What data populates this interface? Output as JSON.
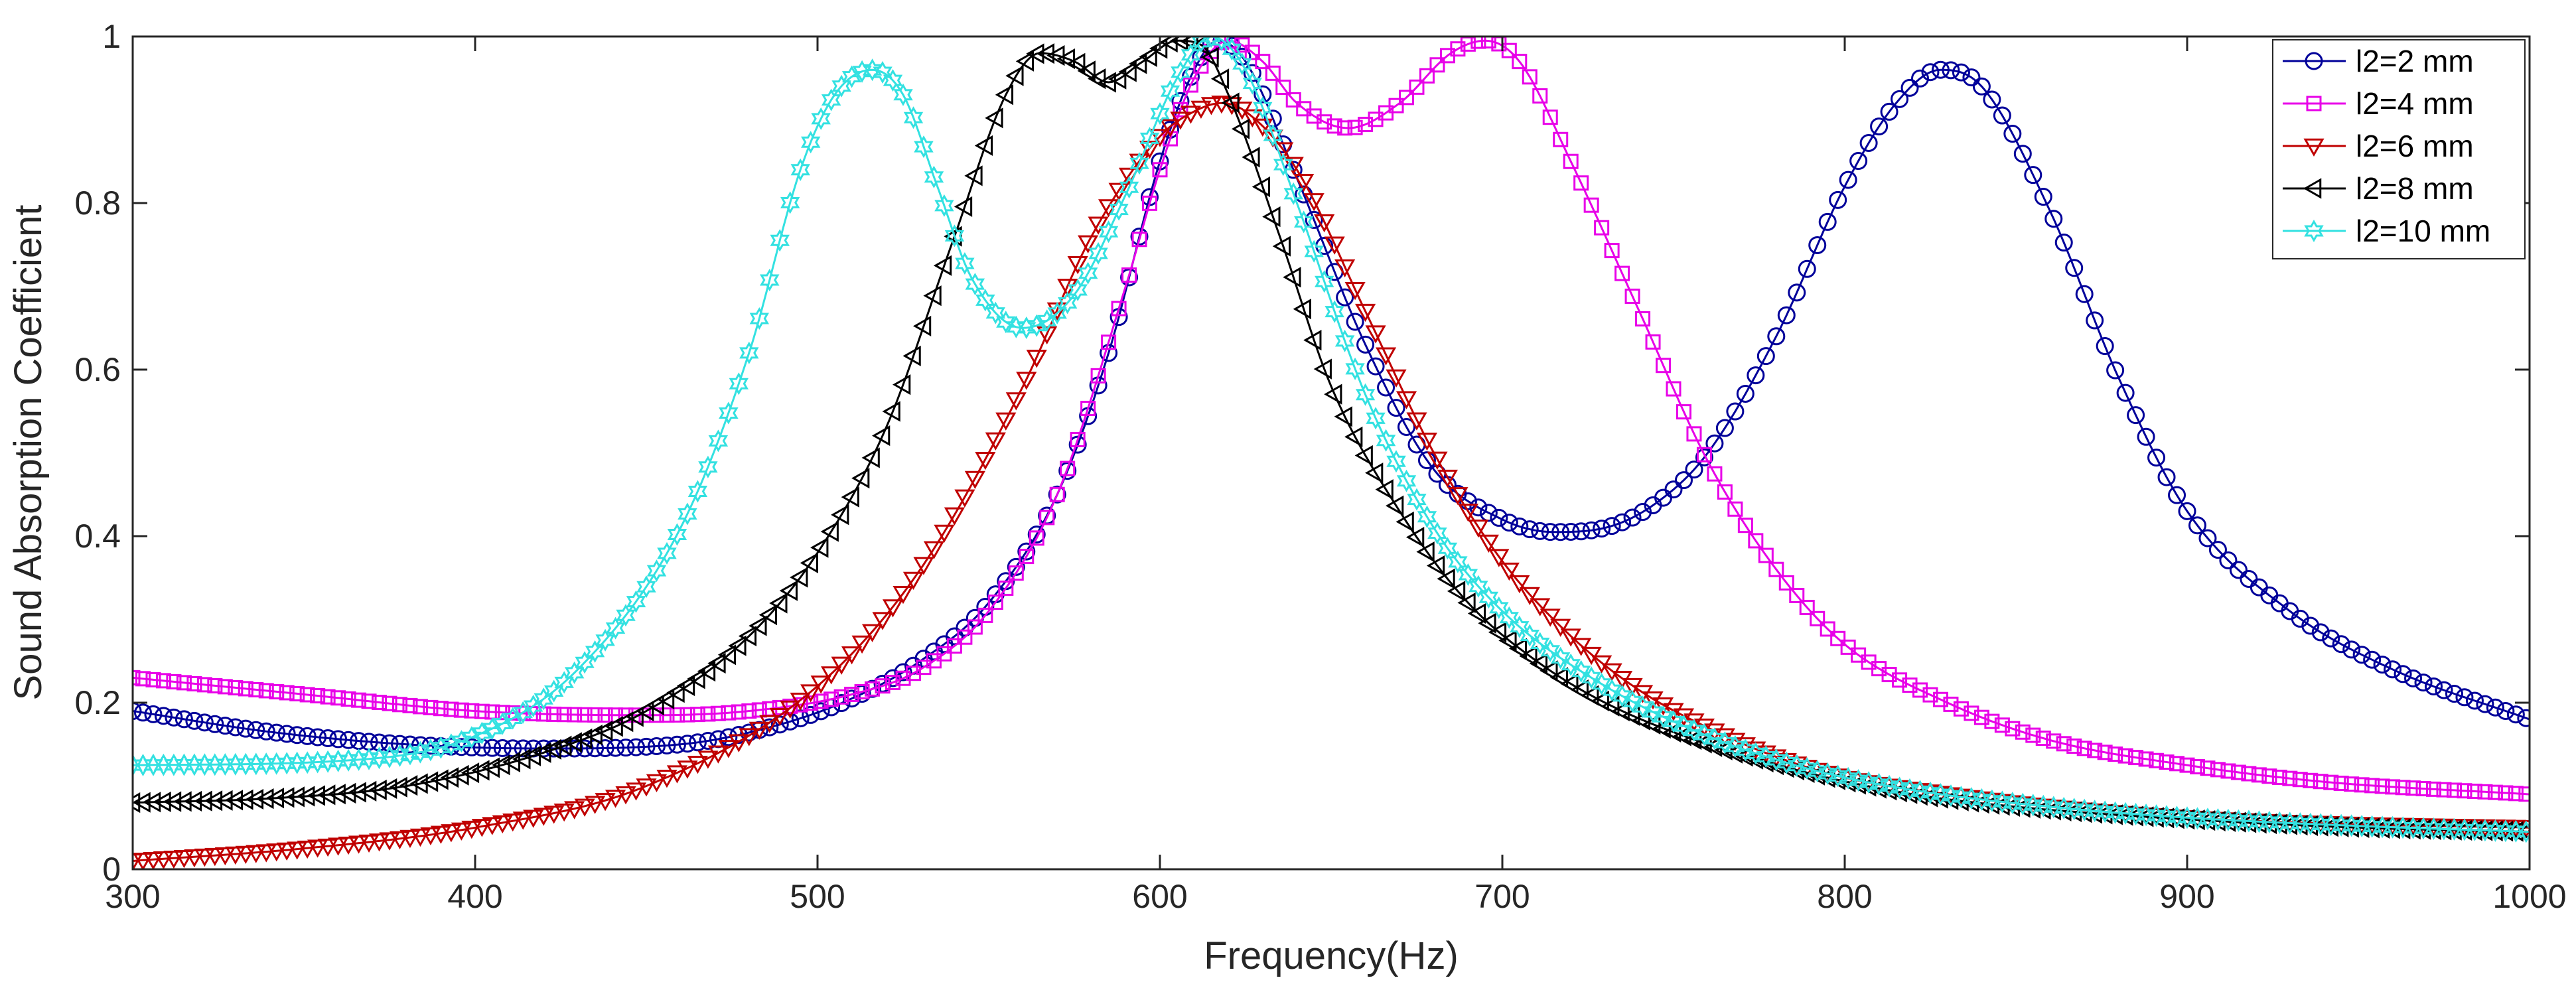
{
  "chart_data": {
    "type": "line",
    "title": "",
    "xlabel": "Frequency(Hz)",
    "ylabel": "Sound Absorption Coefficient",
    "xlim": [
      300,
      1000
    ],
    "ylim": [
      0,
      1
    ],
    "xticks": [
      "300",
      "400",
      "500",
      "600",
      "700",
      "800",
      "900",
      "1000"
    ],
    "yticks": [
      "0",
      "0.2",
      "0.4",
      "0.6",
      "0.8",
      "1"
    ],
    "grid": false,
    "legend_position": "top-right",
    "series": [
      {
        "name": "l2=2 mm",
        "color": "#00009a",
        "marker": "circle",
        "x": [
          300,
          340,
          380,
          420,
          460,
          490,
          510,
          530,
          550,
          570,
          585,
          600,
          610,
          617,
          625,
          640,
          660,
          680,
          700,
          715,
          730,
          745,
          760,
          780,
          800,
          815,
          828,
          840,
          860,
          880,
          900,
          930,
          960,
          1000
        ],
        "y": [
          0.19,
          0.165,
          0.15,
          0.145,
          0.15,
          0.175,
          0.205,
          0.25,
          0.32,
          0.45,
          0.62,
          0.85,
          0.96,
          0.995,
          0.97,
          0.83,
          0.63,
          0.48,
          0.42,
          0.405,
          0.41,
          0.44,
          0.5,
          0.64,
          0.82,
          0.92,
          0.96,
          0.94,
          0.79,
          0.59,
          0.43,
          0.31,
          0.24,
          0.18
        ]
      },
      {
        "name": "l2=4 mm",
        "color": "#e800e8",
        "marker": "square",
        "x": [
          300,
          350,
          400,
          450,
          480,
          510,
          530,
          550,
          570,
          590,
          600,
          610,
          620,
          630,
          640,
          655,
          670,
          685,
          695,
          705,
          720,
          740,
          760,
          780,
          800,
          830,
          860,
          900,
          940,
          1000
        ],
        "y": [
          0.23,
          0.21,
          0.19,
          0.185,
          0.19,
          0.21,
          0.24,
          0.31,
          0.45,
          0.7,
          0.84,
          0.95,
          0.995,
          0.97,
          0.92,
          0.89,
          0.92,
          0.98,
          0.995,
          0.97,
          0.85,
          0.67,
          0.49,
          0.36,
          0.27,
          0.2,
          0.155,
          0.125,
          0.105,
          0.09
        ]
      },
      {
        "name": "l2=6 mm",
        "color": "#c00000",
        "marker": "triangle-down",
        "x": [
          300,
          350,
          400,
          450,
          500,
          530,
          560,
          580,
          600,
          610,
          618,
          625,
          640,
          660,
          680,
          700,
          720,
          740,
          760,
          780,
          800,
          830,
          860,
          900,
          940,
          1000
        ],
        "y": [
          0.01,
          0.025,
          0.05,
          0.1,
          0.22,
          0.36,
          0.58,
          0.76,
          0.88,
          0.91,
          0.92,
          0.91,
          0.84,
          0.67,
          0.5,
          0.37,
          0.28,
          0.215,
          0.17,
          0.135,
          0.11,
          0.09,
          0.075,
          0.062,
          0.055,
          0.05
        ]
      },
      {
        "name": "l2=8 mm",
        "color": "#000000",
        "marker": "triangle-left",
        "x": [
          300,
          340,
          380,
          420,
          450,
          480,
          500,
          520,
          540,
          555,
          565,
          575,
          585,
          595,
          605,
          612,
          620,
          635,
          650,
          670,
          690,
          710,
          730,
          760,
          790,
          820,
          850,
          900,
          950,
          1000
        ],
        "y": [
          0.08,
          0.085,
          0.1,
          0.14,
          0.19,
          0.28,
          0.38,
          0.53,
          0.76,
          0.93,
          0.98,
          0.97,
          0.945,
          0.97,
          0.995,
          0.99,
          0.93,
          0.76,
          0.58,
          0.43,
          0.32,
          0.25,
          0.2,
          0.15,
          0.115,
          0.09,
          0.075,
          0.06,
          0.05,
          0.045
        ]
      },
      {
        "name": "l2=10 mm",
        "color": "#33e1e1",
        "marker": "hexagram",
        "x": [
          300,
          360,
          400,
          430,
          460,
          480,
          495,
          505,
          516,
          525,
          535,
          545,
          560,
          575,
          590,
          605,
          615,
          625,
          640,
          660,
          680,
          700,
          730,
          760,
          790,
          820,
          860,
          900,
          950,
          1000
        ],
        "y": [
          0.125,
          0.13,
          0.16,
          0.24,
          0.41,
          0.62,
          0.84,
          0.93,
          0.96,
          0.93,
          0.82,
          0.71,
          0.65,
          0.69,
          0.81,
          0.95,
          1.0,
          0.96,
          0.8,
          0.57,
          0.41,
          0.31,
          0.22,
          0.16,
          0.12,
          0.095,
          0.075,
          0.062,
          0.052,
          0.045
        ]
      }
    ]
  }
}
